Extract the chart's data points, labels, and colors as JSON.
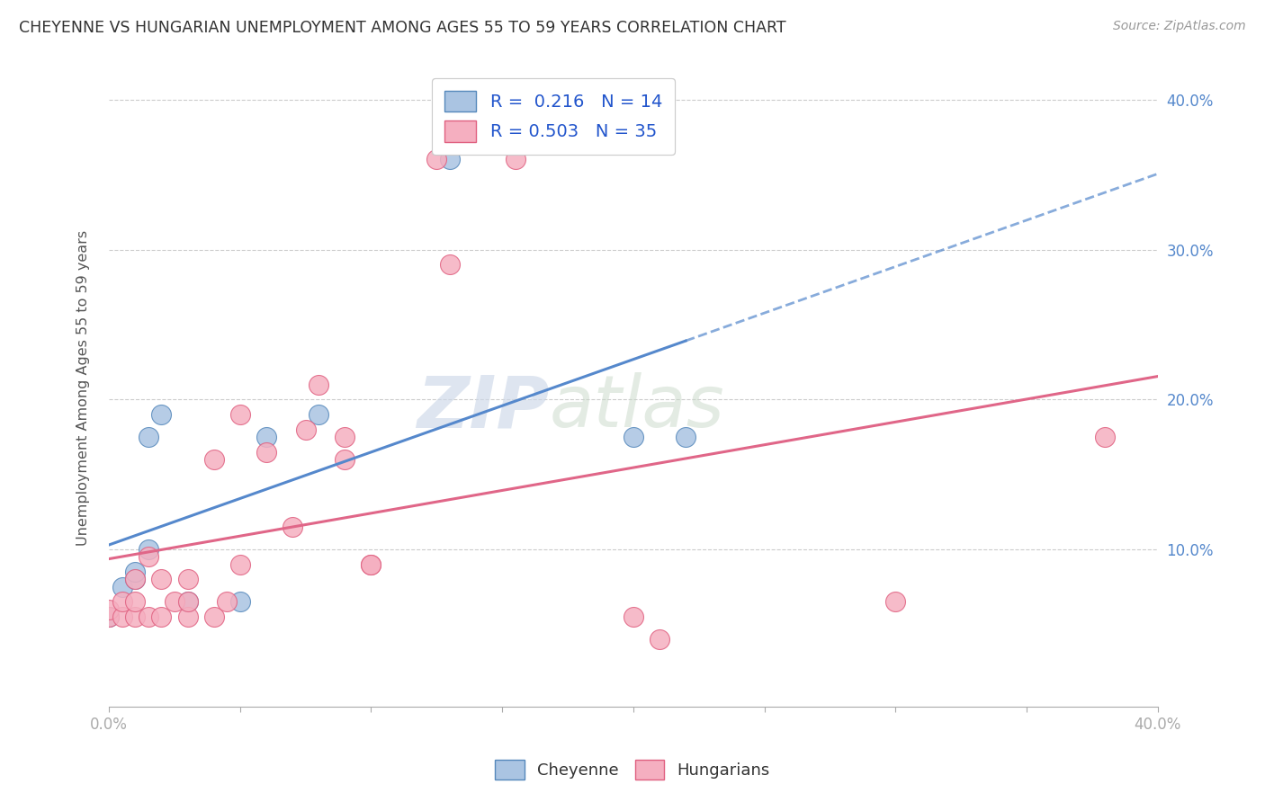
{
  "title": "CHEYENNE VS HUNGARIAN UNEMPLOYMENT AMONG AGES 55 TO 59 YEARS CORRELATION CHART",
  "source": "Source: ZipAtlas.com",
  "ylabel": "Unemployment Among Ages 55 to 59 years",
  "xlim": [
    0.0,
    0.4
  ],
  "ylim": [
    -0.005,
    0.42
  ],
  "cheyenne_color": "#aac4e2",
  "hungarian_color": "#f5afc0",
  "cheyenne_edge_color": "#5588bb",
  "hungarian_edge_color": "#e06080",
  "cheyenne_line_color": "#5588cc",
  "hungarian_line_color": "#e06688",
  "cheyenne_R": 0.216,
  "cheyenne_N": 14,
  "hungarian_R": 0.503,
  "hungarian_N": 35,
  "cheyenne_x": [
    0.0,
    0.005,
    0.01,
    0.01,
    0.015,
    0.015,
    0.02,
    0.03,
    0.05,
    0.06,
    0.08,
    0.13,
    0.2,
    0.22
  ],
  "cheyenne_y": [
    0.055,
    0.075,
    0.08,
    0.085,
    0.1,
    0.175,
    0.19,
    0.065,
    0.065,
    0.175,
    0.19,
    0.36,
    0.175,
    0.175
  ],
  "hungarian_x": [
    0.0,
    0.0,
    0.005,
    0.005,
    0.01,
    0.01,
    0.01,
    0.015,
    0.015,
    0.02,
    0.02,
    0.025,
    0.03,
    0.03,
    0.03,
    0.04,
    0.04,
    0.045,
    0.05,
    0.05,
    0.06,
    0.07,
    0.075,
    0.08,
    0.09,
    0.09,
    0.1,
    0.1,
    0.125,
    0.13,
    0.155,
    0.2,
    0.21,
    0.3,
    0.38
  ],
  "hungarian_y": [
    0.055,
    0.06,
    0.055,
    0.065,
    0.055,
    0.065,
    0.08,
    0.055,
    0.095,
    0.055,
    0.08,
    0.065,
    0.055,
    0.065,
    0.08,
    0.055,
    0.16,
    0.065,
    0.09,
    0.19,
    0.165,
    0.115,
    0.18,
    0.21,
    0.16,
    0.175,
    0.09,
    0.09,
    0.36,
    0.29,
    0.36,
    0.055,
    0.04,
    0.065,
    0.175
  ],
  "watermark_zip": "ZIP",
  "watermark_atlas": "atlas",
  "background_color": "#ffffff",
  "grid_color": "#cccccc",
  "legend_label_color": "#2255cc",
  "xtick_labels": [
    "0.0%",
    "",
    "",
    "",
    "",
    "",
    "",
    "",
    "40.0%"
  ],
  "xtick_vals": [
    0.0,
    0.05,
    0.1,
    0.15,
    0.2,
    0.25,
    0.3,
    0.35,
    0.4
  ],
  "ytick_right_vals": [
    0.1,
    0.2,
    0.3,
    0.4
  ],
  "ytick_right_labels": [
    "10.0%",
    "20.0%",
    "30.0%",
    "40.0%"
  ]
}
